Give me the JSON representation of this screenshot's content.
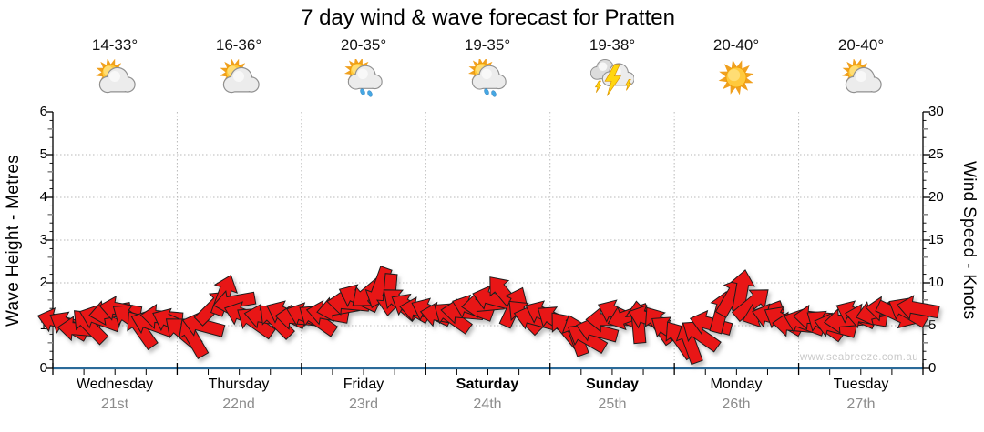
{
  "title": "7 day wind & wave forecast for Pratten",
  "watermark": "www.seabreeze.com.au",
  "axes": {
    "left_label": "Wave Height - Metres",
    "right_label": "Wind Speed - Knots",
    "left_ticks": [
      0,
      1,
      2,
      3,
      4,
      5,
      6
    ],
    "right_ticks": [
      0,
      5,
      10,
      15,
      20,
      25,
      30
    ]
  },
  "days": [
    {
      "name": "Wednesday",
      "date": "21st",
      "temp": "14-33°",
      "icon": "partly-cloudy",
      "weekend": false
    },
    {
      "name": "Thursday",
      "date": "22nd",
      "temp": "16-36°",
      "icon": "partly-cloudy",
      "weekend": false
    },
    {
      "name": "Friday",
      "date": "23rd",
      "temp": "20-35°",
      "icon": "showers",
      "weekend": false
    },
    {
      "name": "Saturday",
      "date": "24th",
      "temp": "19-35°",
      "icon": "showers",
      "weekend": true
    },
    {
      "name": "Sunday",
      "date": "25th",
      "temp": "19-38°",
      "icon": "storm",
      "weekend": true
    },
    {
      "name": "Monday",
      "date": "26th",
      "temp": "20-40°",
      "icon": "sunny",
      "weekend": false
    },
    {
      "name": "Tuesday",
      "date": "27th",
      "temp": "20-40°",
      "icon": "partly-cloudy",
      "weekend": false
    }
  ],
  "colors": {
    "arrow": "#e81313",
    "arrow_outline": "#1c1c1c",
    "axis_baseline": "#2b6a99",
    "axis_line": "#000000",
    "gridline": "#b8b8b8",
    "date_text": "#8c8c8c",
    "watermark_text": "#c9c9c9"
  },
  "chart_data": {
    "type": "scatter",
    "marker": "wind-direction-arrow",
    "title": "7 day wind & wave forecast for Pratten",
    "x_unit": "hours-from-start",
    "x_range": [
      0,
      168
    ],
    "categories": [
      "Wednesday",
      "Thursday",
      "Friday",
      "Saturday",
      "Sunday",
      "Monday",
      "Tuesday"
    ],
    "left_axis": {
      "label": "Wave Height - Metres",
      "range": [
        0,
        6
      ]
    },
    "right_axis": {
      "label": "Wind Speed - Knots",
      "range": [
        0,
        30
      ]
    },
    "grid": true,
    "arrow_columns": [
      "hour",
      "wind_speed_knots",
      "direction_deg_screen"
    ],
    "arrows": [
      [
        1,
        5.5,
        195
      ],
      [
        3,
        5.0,
        210
      ],
      [
        5,
        4.6,
        185
      ],
      [
        7,
        5.0,
        225
      ],
      [
        9,
        5.8,
        200
      ],
      [
        11,
        6.6,
        170
      ],
      [
        13,
        6.9,
        190
      ],
      [
        15,
        5.8,
        215
      ],
      [
        17,
        4.6,
        235
      ],
      [
        19,
        5.2,
        200
      ],
      [
        21,
        6.0,
        185
      ],
      [
        23,
        5.4,
        205
      ],
      [
        25,
        4.2,
        220
      ],
      [
        27,
        3.6,
        240
      ],
      [
        29,
        5.0,
        195
      ],
      [
        31,
        7.2,
        315
      ],
      [
        33,
        8.6,
        290
      ],
      [
        35,
        7.8,
        170
      ],
      [
        37,
        6.2,
        200
      ],
      [
        39,
        5.4,
        215
      ],
      [
        41,
        6.0,
        190
      ],
      [
        43,
        5.6,
        225
      ],
      [
        45,
        6.3,
        205
      ],
      [
        47,
        5.9,
        185
      ],
      [
        49,
        6.1,
        200
      ],
      [
        51,
        5.7,
        215
      ],
      [
        53,
        6.4,
        190
      ],
      [
        55,
        7.0,
        170
      ],
      [
        57,
        7.6,
        185
      ],
      [
        59,
        8.2,
        205
      ],
      [
        61,
        8.9,
        140
      ],
      [
        63,
        9.4,
        110
      ],
      [
        65,
        8.6,
        95
      ],
      [
        67,
        7.6,
        220
      ],
      [
        69,
        7.1,
        210
      ],
      [
        71,
        6.8,
        190
      ],
      [
        73,
        6.6,
        205
      ],
      [
        75,
        6.2,
        190
      ],
      [
        77,
        6.0,
        215
      ],
      [
        79,
        6.6,
        185
      ],
      [
        81,
        7.0,
        200
      ],
      [
        83,
        7.4,
        175
      ],
      [
        85,
        8.1,
        195
      ],
      [
        87,
        8.8,
        230
      ],
      [
        89,
        7.2,
        295
      ],
      [
        91,
        6.1,
        225
      ],
      [
        93,
        5.8,
        195
      ],
      [
        95,
        6.3,
        205
      ],
      [
        97,
        5.6,
        215
      ],
      [
        99,
        4.6,
        230
      ],
      [
        101,
        3.9,
        250
      ],
      [
        103,
        3.6,
        210
      ],
      [
        105,
        4.4,
        195
      ],
      [
        107,
        5.7,
        180
      ],
      [
        109,
        6.4,
        205
      ],
      [
        111,
        6.1,
        160
      ],
      [
        113,
        5.4,
        265
      ],
      [
        115,
        5.8,
        200
      ],
      [
        117,
        5.1,
        235
      ],
      [
        119,
        4.4,
        215
      ],
      [
        121,
        3.4,
        235
      ],
      [
        123,
        3.0,
        250
      ],
      [
        125,
        3.9,
        215
      ],
      [
        127,
        5.2,
        195
      ],
      [
        129,
        6.6,
        285
      ],
      [
        131,
        8.4,
        300
      ],
      [
        133,
        9.1,
        280
      ],
      [
        135,
        7.6,
        320
      ],
      [
        137,
        6.4,
        160
      ],
      [
        139,
        6.0,
        195
      ],
      [
        141,
        5.6,
        210
      ],
      [
        143,
        5.1,
        185
      ],
      [
        145,
        5.3,
        200
      ],
      [
        147,
        5.9,
        185
      ],
      [
        149,
        5.1,
        215
      ],
      [
        151,
        4.9,
        195
      ],
      [
        153,
        5.6,
        175
      ],
      [
        155,
        6.3,
        205
      ],
      [
        157,
        6.0,
        190
      ],
      [
        159,
        6.6,
        165
      ],
      [
        161,
        6.9,
        185
      ],
      [
        163,
        6.3,
        25
      ],
      [
        165,
        6.6,
        210
      ],
      [
        167,
        7.0,
        190
      ]
    ]
  }
}
